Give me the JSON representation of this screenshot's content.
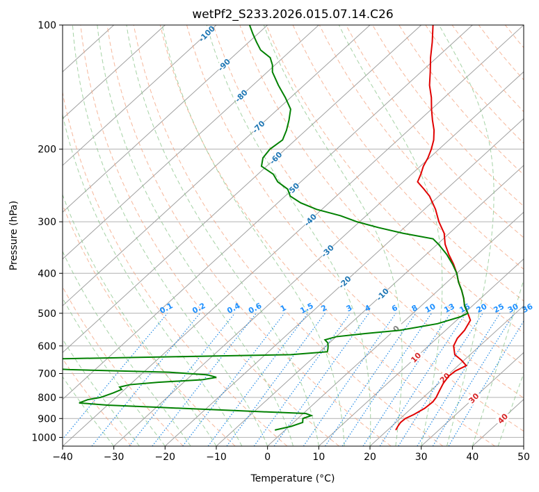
{
  "chart_data": {
    "type": "line",
    "title": "wetPf2_S233.2026.015.07.14.C26",
    "xlabel": "Temperature (°C)",
    "ylabel": "Pressure (hPa)",
    "xlim": [
      -40,
      50
    ],
    "ylim": [
      1050,
      100
    ],
    "y_scale": "log",
    "x_ticks": [
      -40,
      -30,
      -20,
      -10,
      0,
      10,
      20,
      30,
      40,
      50
    ],
    "y_ticks": [
      100,
      200,
      300,
      400,
      500,
      600,
      700,
      800,
      900,
      1000
    ],
    "grid": true,
    "skew": true,
    "colors": {
      "temperature": "#e00000",
      "dewpoint": "#008000",
      "isotherm": "#a0a0a0",
      "dry_adiabat": "#f4a582",
      "moist_adiabat": "#7fbf7f",
      "mixing_ratio": "#1e88e5",
      "isotherm_label": "#1f77b4"
    },
    "isotherm_labels": [
      "-100",
      "-90",
      "-80",
      "-70",
      "-60",
      "-50",
      "-40",
      "-30",
      "-20",
      "-10",
      "0",
      "10",
      "20",
      "30",
      "40"
    ],
    "mixing_ratio_labels": [
      "0.1",
      "0.2",
      "0.4",
      "0.6",
      "1",
      "1.5",
      "2",
      "3",
      "4",
      "6",
      "8",
      "10",
      "13",
      "16",
      "20",
      "25",
      "30",
      "36"
    ],
    "series": [
      {
        "key": "temperature",
        "points": [
          [
            960,
            21.6
          ],
          [
            940,
            21.2
          ],
          [
            920,
            20.9
          ],
          [
            900,
            21.0
          ],
          [
            880,
            21.8
          ],
          [
            850,
            22.6
          ],
          [
            820,
            22.8
          ],
          [
            800,
            22.5
          ],
          [
            770,
            21.7
          ],
          [
            740,
            20.9
          ],
          [
            710,
            20.4
          ],
          [
            690,
            20.6
          ],
          [
            670,
            21.6
          ],
          [
            650,
            19.5
          ],
          [
            630,
            17.0
          ],
          [
            600,
            14.9
          ],
          [
            575,
            14.0
          ],
          [
            550,
            13.7
          ],
          [
            520,
            12.7
          ],
          [
            500,
            10.7
          ],
          [
            480,
            8.5
          ],
          [
            460,
            6.7
          ],
          [
            440,
            4.6
          ],
          [
            420,
            2.2
          ],
          [
            400,
            0.0
          ],
          [
            380,
            -2.6
          ],
          [
            360,
            -5.6
          ],
          [
            340,
            -8.5
          ],
          [
            320,
            -11.0
          ],
          [
            300,
            -14.5
          ],
          [
            280,
            -17.8
          ],
          [
            260,
            -21.8
          ],
          [
            250,
            -24.4
          ],
          [
            240,
            -27.2
          ],
          [
            230,
            -28.2
          ],
          [
            220,
            -29.4
          ],
          [
            210,
            -30.3
          ],
          [
            200,
            -31.5
          ],
          [
            190,
            -33.0
          ],
          [
            180,
            -35.0
          ],
          [
            170,
            -37.5
          ],
          [
            160,
            -40.0
          ],
          [
            150,
            -42.5
          ],
          [
            140,
            -45.5
          ],
          [
            130,
            -48.2
          ],
          [
            120,
            -51.2
          ],
          [
            110,
            -54.2
          ],
          [
            100,
            -57.7
          ]
        ]
      },
      {
        "key": "dewpoint",
        "points": [
          [
            960,
            -2.0
          ],
          [
            940,
            0.4
          ],
          [
            920,
            1.8
          ],
          [
            900,
            1.0
          ],
          [
            885,
            2.0
          ],
          [
            875,
            0.5
          ],
          [
            865,
            -10.0
          ],
          [
            855,
            -20.0
          ],
          [
            845,
            -30.0
          ],
          [
            835,
            -40.0
          ],
          [
            825,
            -46.0
          ],
          [
            810,
            -45.0
          ],
          [
            800,
            -43.0
          ],
          [
            780,
            -41.5
          ],
          [
            765,
            -40.6
          ],
          [
            755,
            -41.5
          ],
          [
            745,
            -40.0
          ],
          [
            735,
            -35.0
          ],
          [
            725,
            -27.0
          ],
          [
            715,
            -24.7
          ],
          [
            705,
            -27.0
          ],
          [
            695,
            -35.0
          ],
          [
            685,
            -55.0
          ],
          [
            670,
            -70.0
          ],
          [
            655,
            -70.0
          ],
          [
            645,
            -60.0
          ],
          [
            640,
            -45.0
          ],
          [
            635,
            -30.0
          ],
          [
            630,
            -15.0
          ],
          [
            620,
            -8.5
          ],
          [
            610,
            -9.0
          ],
          [
            600,
            -9.6
          ],
          [
            590,
            -10.3
          ],
          [
            580,
            -11.5
          ],
          [
            570,
            -10.0
          ],
          [
            560,
            -5.0
          ],
          [
            550,
            1.0
          ],
          [
            530,
            7.0
          ],
          [
            510,
            10.0
          ],
          [
            500,
            10.7
          ],
          [
            480,
            8.5
          ],
          [
            460,
            6.7
          ],
          [
            440,
            4.6
          ],
          [
            420,
            2.2
          ],
          [
            400,
            0.0
          ],
          [
            380,
            -2.8
          ],
          [
            360,
            -6.0
          ],
          [
            340,
            -9.8
          ],
          [
            330,
            -12.0
          ],
          [
            320,
            -19.0
          ],
          [
            310,
            -25.0
          ],
          [
            300,
            -30.5
          ],
          [
            290,
            -35.0
          ],
          [
            280,
            -41.0
          ],
          [
            270,
            -45.5
          ],
          [
            260,
            -49.0
          ],
          [
            250,
            -51.0
          ],
          [
            240,
            -54.5
          ],
          [
            230,
            -57.0
          ],
          [
            220,
            -61.0
          ],
          [
            210,
            -62.5
          ],
          [
            200,
            -63.0
          ],
          [
            190,
            -62.5
          ],
          [
            180,
            -63.8
          ],
          [
            170,
            -65.5
          ],
          [
            160,
            -67.5
          ],
          [
            150,
            -71.0
          ],
          [
            140,
            -75.0
          ],
          [
            130,
            -79.0
          ],
          [
            125,
            -80.5
          ],
          [
            120,
            -82.5
          ],
          [
            115,
            -86.0
          ],
          [
            110,
            -88.5
          ],
          [
            105,
            -91.0
          ],
          [
            100,
            -93.5
          ]
        ]
      }
    ]
  }
}
